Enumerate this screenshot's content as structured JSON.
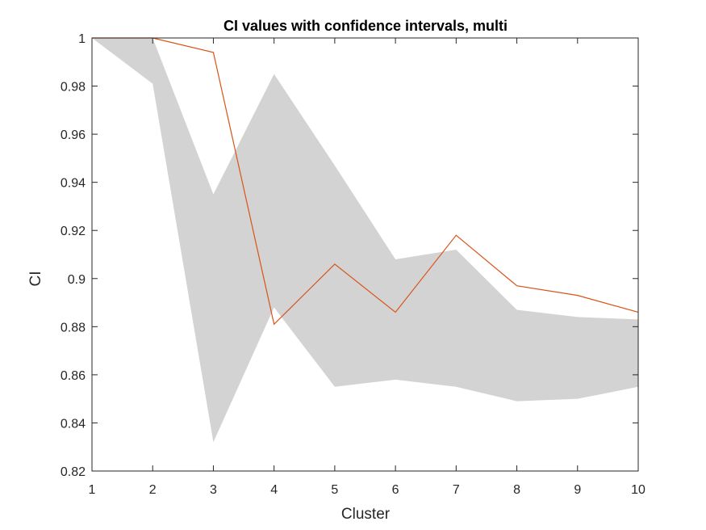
{
  "chart_data": {
    "type": "area",
    "title": "CI values with confidence intervals, multi",
    "xlabel": "Cluster",
    "ylabel": "CI",
    "xlim": [
      1,
      10
    ],
    "ylim": [
      0.82,
      1.0
    ],
    "xticks": [
      "1",
      "2",
      "3",
      "4",
      "5",
      "6",
      "7",
      "8",
      "9",
      "10"
    ],
    "yticks": [
      "0.82",
      "0.84",
      "0.86",
      "0.88",
      "0.9",
      "0.92",
      "0.94",
      "0.96",
      "0.98",
      "1"
    ],
    "x": [
      1,
      2,
      3,
      4,
      5,
      6,
      7,
      8,
      9,
      10
    ],
    "band": {
      "color": "#d3d3d3",
      "upper": [
        1.0,
        1.0,
        0.935,
        0.985,
        0.947,
        0.908,
        0.912,
        0.887,
        0.884,
        0.883
      ],
      "lower": [
        1.0,
        0.981,
        0.832,
        0.888,
        0.855,
        0.858,
        0.855,
        0.849,
        0.85,
        0.855
      ]
    },
    "series": [
      {
        "color": "#d95319",
        "values": [
          1.0,
          1.0,
          0.994,
          0.881,
          0.906,
          0.886,
          0.918,
          0.897,
          0.893,
          0.886
        ]
      }
    ],
    "grid": false,
    "legend": false
  }
}
